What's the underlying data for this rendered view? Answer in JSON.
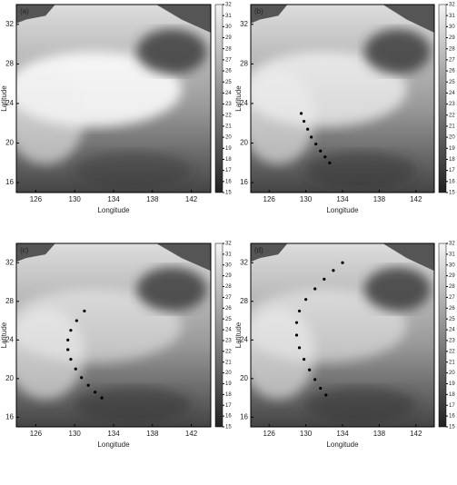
{
  "chart_data": [
    {
      "type": "map",
      "label": "(a)",
      "xlabel": "Longitude",
      "ylabel": "Latitude",
      "xlim": [
        124,
        144
      ],
      "ylim": [
        15,
        34
      ],
      "xticks": [
        126,
        130,
        134,
        138,
        142
      ],
      "yticks": [
        16,
        20,
        24,
        28,
        32
      ],
      "clim": [
        15,
        32
      ],
      "cticks": [
        15,
        16,
        17,
        18,
        19,
        20,
        21,
        22,
        23,
        24,
        25,
        26,
        27,
        28,
        29,
        30,
        31,
        32
      ],
      "track": {
        "lon": [],
        "lat": []
      }
    },
    {
      "type": "map",
      "label": "(b)",
      "xlabel": "Longitude",
      "ylabel": "Latitude",
      "xlim": [
        124,
        144
      ],
      "ylim": [
        15,
        34
      ],
      "xticks": [
        126,
        130,
        134,
        138,
        142
      ],
      "yticks": [
        16,
        20,
        24,
        28,
        32
      ],
      "clim": [
        15,
        32
      ],
      "cticks": [
        15,
        16,
        17,
        18,
        19,
        20,
        21,
        22,
        23,
        24,
        25,
        26,
        27,
        28,
        29,
        30,
        31,
        32
      ],
      "track": {
        "lon": [
          129.5,
          129.8,
          130.2,
          130.6,
          131.1,
          131.6,
          132.1,
          132.6
        ],
        "lat": [
          23,
          22.2,
          21.4,
          20.6,
          19.9,
          19.2,
          18.6,
          18
        ]
      }
    },
    {
      "type": "map",
      "label": "(c)",
      "xlabel": "Longitude",
      "ylabel": "Latitude",
      "xlim": [
        124,
        144
      ],
      "ylim": [
        15,
        34
      ],
      "xticks": [
        126,
        130,
        134,
        138,
        142
      ],
      "yticks": [
        16,
        20,
        24,
        28,
        32
      ],
      "clim": [
        15,
        32
      ],
      "cticks": [
        15,
        16,
        17,
        18,
        19,
        20,
        21,
        22,
        23,
        24,
        25,
        26,
        27,
        28,
        29,
        30,
        31,
        32
      ],
      "track": {
        "lon": [
          131,
          130.2,
          129.6,
          129.3,
          129.3,
          129.6,
          130.1,
          130.7,
          131.4,
          132.1,
          132.8
        ],
        "lat": [
          27,
          26,
          25,
          24,
          23,
          22,
          21,
          20.1,
          19.3,
          18.6,
          18
        ]
      }
    },
    {
      "type": "map",
      "label": "(d)",
      "xlabel": "Longitude",
      "ylabel": "Latitude",
      "xlim": [
        124,
        144
      ],
      "ylim": [
        15,
        34
      ],
      "xticks": [
        126,
        130,
        134,
        138,
        142
      ],
      "yticks": [
        16,
        20,
        24,
        28,
        32
      ],
      "clim": [
        15,
        32
      ],
      "cticks": [
        15,
        16,
        17,
        18,
        19,
        20,
        21,
        22,
        23,
        24,
        25,
        26,
        27,
        28,
        29,
        30,
        31,
        32
      ],
      "track": {
        "lon": [
          134,
          133,
          132,
          131,
          130,
          129.3,
          129,
          129,
          129.3,
          129.8,
          130.4,
          131,
          131.6,
          132.2
        ],
        "lat": [
          32,
          31.2,
          30.3,
          29.3,
          28.2,
          27,
          25.8,
          24.5,
          23.2,
          22,
          20.9,
          19.9,
          19,
          18.3
        ]
      }
    }
  ]
}
